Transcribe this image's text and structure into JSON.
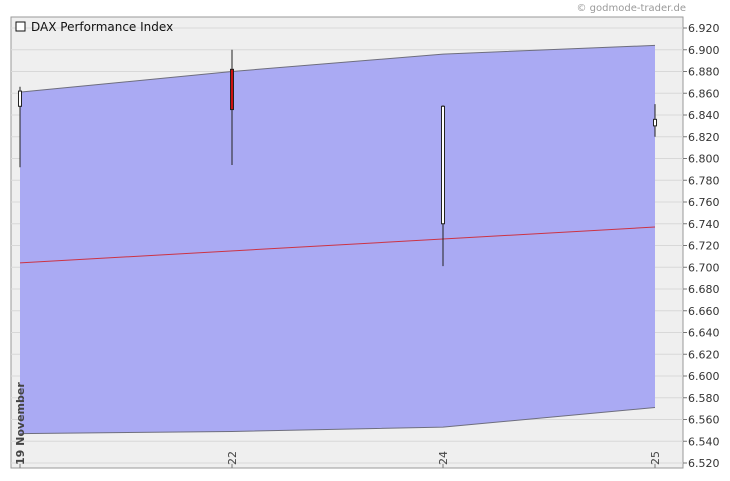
{
  "watermark": "© godmode-trader.de",
  "chart_data": {
    "type": "candlestick",
    "title": "DAX Performance Index",
    "legend": "top-left",
    "grid": true,
    "ylim": [
      6520,
      6930
    ],
    "yticks": [
      6920,
      6900,
      6880,
      6860,
      6840,
      6820,
      6800,
      6780,
      6760,
      6740,
      6720,
      6700,
      6680,
      6660,
      6640,
      6620,
      6600,
      6580,
      6560,
      6540,
      6520
    ],
    "ytick_labels": [
      "6.920",
      "6.900",
      "6.880",
      "6.860",
      "6.840",
      "6.820",
      "6.800",
      "6.780",
      "6.760",
      "6.740",
      "6.720",
      "6.700",
      "6.680",
      "6.660",
      "6.640",
      "6.620",
      "6.600",
      "6.580",
      "6.560",
      "6.540",
      "6.520"
    ],
    "xdomain": [
      "19 November",
      "25"
    ],
    "xtick_labels": [
      {
        "x": "19 November",
        "label": "19 November",
        "bold": true
      },
      {
        "x": "22",
        "label": "22",
        "bold": false
      },
      {
        "x": "24",
        "label": "24",
        "bold": false
      },
      {
        "x": "25",
        "label": "25",
        "bold": false
      }
    ],
    "candles": [
      {
        "x": "19 November",
        "open": 6848,
        "high": 6866,
        "low": 6792,
        "close": 6862,
        "direction": "up"
      },
      {
        "x": "22",
        "open": 6882,
        "high": 6900,
        "low": 6794,
        "close": 6845,
        "direction": "down"
      },
      {
        "x": "24",
        "open": 6740,
        "high": 6849,
        "low": 6701,
        "close": 6848,
        "direction": "up"
      },
      {
        "x": "25",
        "open": 6830,
        "high": 6850,
        "low": 6820,
        "close": 6836,
        "direction": "up"
      }
    ],
    "band_upper": [
      {
        "x": "19 November",
        "y": 6861
      },
      {
        "x": "22",
        "y": 6880
      },
      {
        "x": "24",
        "y": 6896
      },
      {
        "x": "25",
        "y": 6904
      }
    ],
    "band_lower": [
      {
        "x": "19 November",
        "y": 6547
      },
      {
        "x": "22",
        "y": 6549
      },
      {
        "x": "24",
        "y": 6553
      },
      {
        "x": "25",
        "y": 6571
      }
    ],
    "mid_line": [
      {
        "x": "19 November",
        "y": 6704
      },
      {
        "x": "25",
        "y": 6737
      }
    ],
    "colors": {
      "band_fill": "#aaaaf3",
      "band_edge": "#6e6e7e",
      "mid_line": "#cc3344",
      "candle_up": "#ffffff",
      "candle_down": "#cc1111",
      "plot_bg": "#efefef",
      "grid": "#d8d8d8"
    }
  }
}
